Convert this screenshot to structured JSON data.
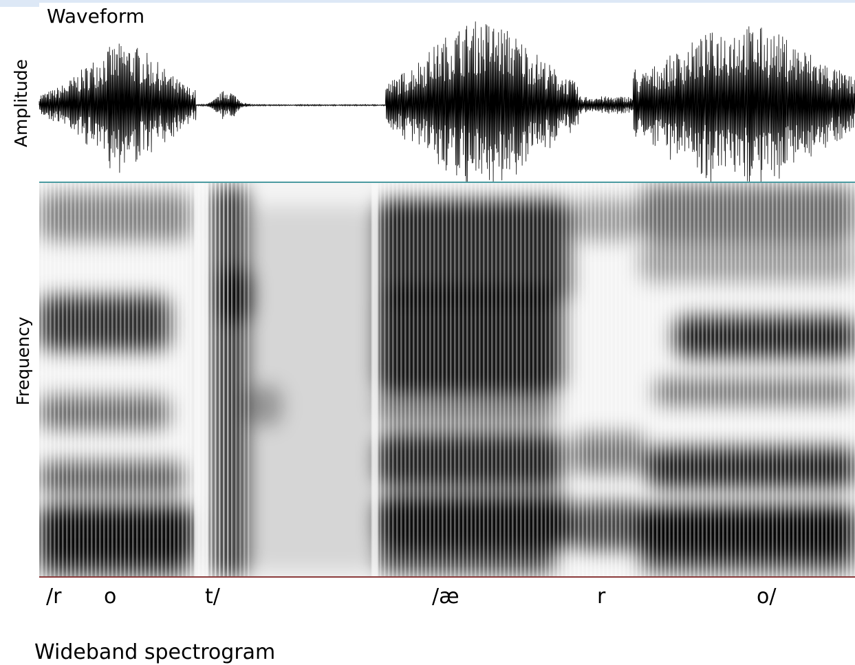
{
  "waveform": {
    "title": "Waveform",
    "axis_label": "Amplitude"
  },
  "spectrogram": {
    "axis_label": "Frequency",
    "segments": [
      "/r",
      "o",
      "t/",
      "/æ",
      "r",
      "o/"
    ],
    "caption": "Wideband spectrogram"
  }
}
